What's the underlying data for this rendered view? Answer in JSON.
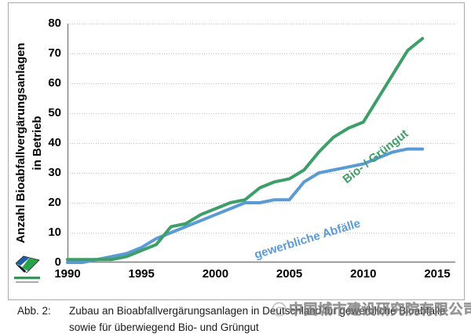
{
  "chart": {
    "y_axis_title_line1": "Anzahl Bioabfallvergärungsanlagen",
    "y_axis_title_line2": "in Betrieb"
  },
  "chart_data": {
    "type": "line",
    "x": [
      1990,
      1991,
      1992,
      1993,
      1994,
      1995,
      1996,
      1997,
      1998,
      1999,
      2000,
      2001,
      2002,
      2003,
      2004,
      2005,
      2006,
      2007,
      2008,
      2009,
      2010,
      2011,
      2012,
      2013,
      2014
    ],
    "series": [
      {
        "name": "Bio- / Grüngut",
        "color": "#3E9E67",
        "values": [
          1,
          1,
          1,
          1,
          2,
          4,
          6,
          12,
          13,
          16,
          18,
          20,
          21,
          25,
          27,
          28,
          31,
          37,
          42,
          45,
          47,
          55,
          63,
          71,
          75
        ]
      },
      {
        "name": "gewerbliche Abfälle",
        "color": "#5B9BD5",
        "values": [
          0,
          0,
          1,
          2,
          3,
          5,
          8,
          10,
          12,
          14,
          16,
          18,
          20,
          20,
          21,
          21,
          27,
          30,
          31,
          32,
          33,
          35,
          37,
          38,
          38
        ]
      }
    ],
    "title": "",
    "xlabel": "",
    "ylabel": "Anzahl Bioabfallvergärungsanlagen in Betrieb",
    "xlim": [
      1990,
      2015
    ],
    "ylim": [
      0,
      80
    ],
    "xticks": [
      1990,
      1995,
      2000,
      2005,
      2010,
      2015
    ],
    "yticks": [
      0,
      10,
      20,
      30,
      40,
      50,
      60,
      70,
      80
    ],
    "grid": "horizontal-dotted",
    "legend": "inline-rotated-labels-on-lines"
  },
  "caption": {
    "label": "Abb. 2:",
    "line1": "Zubau an Bioabfallvergärungsanlagen in Deutschland für gewerbliche Bioabfälle",
    "line2": "sowie für überwiegend Bio- und Grüngut"
  },
  "watermark": {
    "text": "中国城市建设研究院有限公司"
  },
  "colors": {
    "green": "#3E9E67",
    "blue": "#5B9BD5",
    "grid": "#C3C3C3",
    "axis": "#7F7F7F",
    "figure_border": "#ABABAB"
  }
}
